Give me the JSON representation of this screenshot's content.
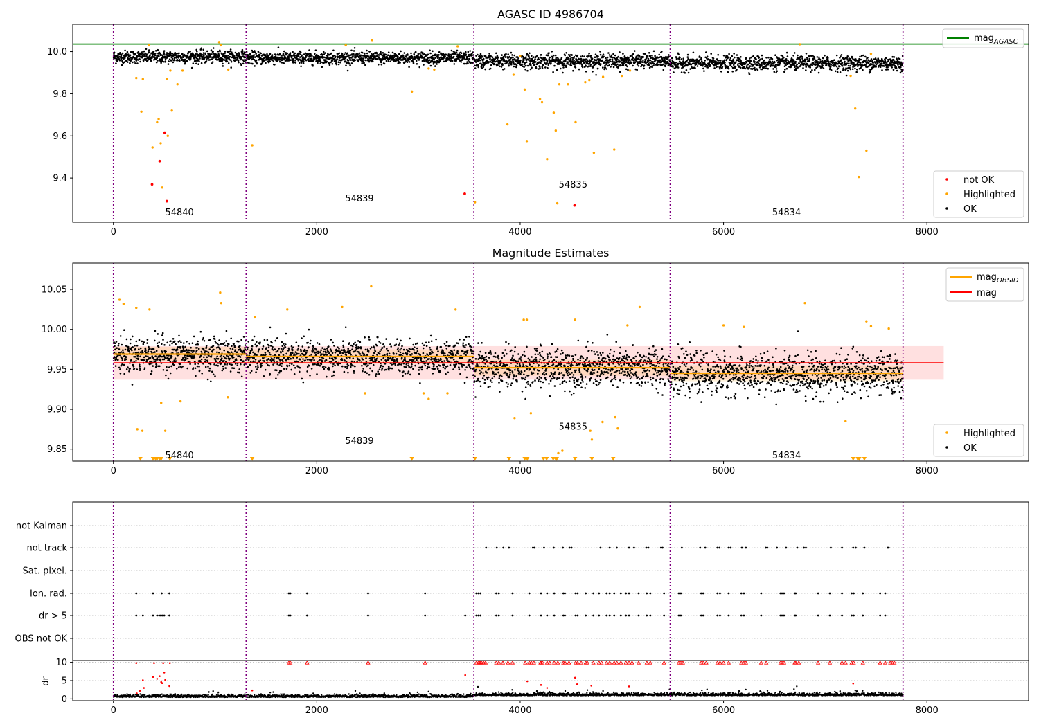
{
  "chart_data": [
    {
      "id": "top",
      "type": "scatter",
      "title": "AGASC ID 4986704",
      "xlim": [
        -400,
        9000
      ],
      "ylim": [
        9.19,
        10.13
      ],
      "xticks": [
        0,
        2000,
        4000,
        6000,
        8000
      ],
      "yticks": [
        9.4,
        9.6,
        9.8,
        10.0
      ],
      "ytick_labels": [
        "9.4",
        "9.6",
        "9.8",
        "10.0"
      ],
      "obs_boundaries": [
        0,
        1305,
        3545,
        5475,
        7765
      ],
      "obsid_labels": [
        {
          "text": "54840",
          "x": 650,
          "y": 9.24
        },
        {
          "text": "54839",
          "x": 2420,
          "y": 9.305
        },
        {
          "text": "54835",
          "x": 4520,
          "y": 9.37
        },
        {
          "text": "54834",
          "x": 6620,
          "y": 9.24
        }
      ],
      "hlines": [
        {
          "name": "mag_AGASC",
          "y": 10.036,
          "color": "#008000"
        }
      ],
      "ok_band": [
        {
          "x0": 0,
          "x1": 1305,
          "center": 9.975,
          "spread": 0.03
        },
        {
          "x0": 1305,
          "x1": 3545,
          "center": 9.97,
          "spread": 0.03
        },
        {
          "x0": 3545,
          "x1": 5475,
          "center": 9.955,
          "spread": 0.035
        },
        {
          "x0": 5475,
          "x1": 7765,
          "center": 9.945,
          "spread": 0.035
        }
      ],
      "series": [
        {
          "name": "not OK",
          "color": "#ff0000",
          "points": [
            [
              380,
              9.37
            ],
            [
              455,
              9.48
            ],
            [
              505,
              9.615
            ],
            [
              525,
              9.29
            ],
            [
              3455,
              9.325
            ],
            [
              4535,
              9.27
            ]
          ]
        },
        {
          "name": "Highlighted",
          "color": "#ffa500",
          "points": [
            [
              225,
              9.875
            ],
            [
              275,
              9.715
            ],
            [
              290,
              9.87
            ],
            [
              350,
              10.03
            ],
            [
              385,
              9.545
            ],
            [
              430,
              9.665
            ],
            [
              445,
              9.68
            ],
            [
              465,
              9.565
            ],
            [
              480,
              9.355
            ],
            [
              525,
              9.87
            ],
            [
              535,
              9.6
            ],
            [
              560,
              9.91
            ],
            [
              575,
              9.72
            ],
            [
              630,
              9.845
            ],
            [
              680,
              9.91
            ],
            [
              1040,
              10.045
            ],
            [
              1055,
              10.03
            ],
            [
              1130,
              9.915
            ],
            [
              1365,
              9.555
            ],
            [
              2285,
              10.03
            ],
            [
              2545,
              10.055
            ],
            [
              2935,
              9.81
            ],
            [
              3100,
              9.92
            ],
            [
              3155,
              9.915
            ],
            [
              3385,
              10.025
            ],
            [
              3555,
              9.285
            ],
            [
              3875,
              9.655
            ],
            [
              3935,
              9.89
            ],
            [
              4000,
              9.98
            ],
            [
              4045,
              9.82
            ],
            [
              4065,
              9.575
            ],
            [
              4195,
              9.775
            ],
            [
              4215,
              9.76
            ],
            [
              4265,
              9.49
            ],
            [
              4330,
              9.71
            ],
            [
              4350,
              9.625
            ],
            [
              4365,
              9.28
            ],
            [
              4385,
              9.845
            ],
            [
              4470,
              9.845
            ],
            [
              4545,
              9.665
            ],
            [
              4640,
              9.855
            ],
            [
              4680,
              9.865
            ],
            [
              4725,
              9.52
            ],
            [
              4815,
              9.88
            ],
            [
              4925,
              9.535
            ],
            [
              5000,
              9.885
            ],
            [
              5080,
              9.91
            ],
            [
              7250,
              9.885
            ],
            [
              7295,
              9.73
            ],
            [
              7330,
              9.405
            ],
            [
              7405,
              9.53
            ],
            [
              7450,
              9.99
            ],
            [
              6750,
              10.035
            ]
          ]
        },
        {
          "name": "OK",
          "color": "#000000",
          "points": []
        }
      ],
      "legend_main": "bottom-right",
      "legend_lines": "top-right",
      "xlabel": "",
      "ylabel": ""
    },
    {
      "id": "mid",
      "type": "scatter",
      "title": "Magnitude Estimates",
      "xlim": [
        -400,
        9000
      ],
      "ylim": [
        9.835,
        10.083
      ],
      "xticks": [
        0,
        2000,
        4000,
        6000,
        8000
      ],
      "yticks": [
        9.85,
        9.9,
        9.95,
        10.0,
        10.05
      ],
      "ytick_labels": [
        "9.85",
        "9.90",
        "9.95",
        "10.00",
        "10.05"
      ],
      "obs_boundaries": [
        0,
        1305,
        3545,
        5475,
        7765
      ],
      "obsid_labels": [
        {
          "text": "54840",
          "x": 650,
          "y": 9.843
        },
        {
          "text": "54839",
          "x": 2420,
          "y": 9.861
        },
        {
          "text": "54835",
          "x": 4520,
          "y": 9.879
        },
        {
          "text": "54834",
          "x": 6620,
          "y": 9.843
        }
      ],
      "mag": {
        "y": 9.958,
        "band": [
          9.937,
          9.979
        ],
        "x0": 0,
        "x1": 8165,
        "color": "#ff0000"
      },
      "mag_obsid": [
        {
          "x0": 0,
          "x1": 1305,
          "y": 9.969,
          "lo": 9.966,
          "hi": 9.972
        },
        {
          "x0": 1305,
          "x1": 3545,
          "y": 9.966,
          "lo": 9.963,
          "hi": 9.969
        },
        {
          "x0": 3545,
          "x1": 5475,
          "y": 9.952,
          "lo": 9.948,
          "hi": 9.956
        },
        {
          "x0": 5475,
          "x1": 7765,
          "y": 9.945,
          "lo": 9.941,
          "hi": 9.949
        }
      ],
      "ok_band": [
        {
          "x0": 0,
          "x1": 1305,
          "center": 9.968,
          "spread": 0.022
        },
        {
          "x0": 1305,
          "x1": 3545,
          "center": 9.965,
          "spread": 0.021
        },
        {
          "x0": 3545,
          "x1": 5475,
          "center": 9.952,
          "spread": 0.025
        },
        {
          "x0": 5475,
          "x1": 7765,
          "center": 9.944,
          "spread": 0.025
        }
      ],
      "series": [
        {
          "name": "Highlighted",
          "color": "#ffa500",
          "points": [
            [
              60,
              10.037
            ],
            [
              100,
              10.032
            ],
            [
              225,
              10.027
            ],
            [
              235,
              9.875
            ],
            [
              285,
              9.873
            ],
            [
              355,
              10.025
            ],
            [
              470,
              9.908
            ],
            [
              510,
              9.873
            ],
            [
              660,
              9.91
            ],
            [
              1050,
              10.046
            ],
            [
              1060,
              10.033
            ],
            [
              1125,
              9.915
            ],
            [
              1390,
              10.015
            ],
            [
              1710,
              10.025
            ],
            [
              2250,
              10.028
            ],
            [
              2475,
              9.92
            ],
            [
              2535,
              10.054
            ],
            [
              3050,
              9.92
            ],
            [
              3100,
              9.913
            ],
            [
              3285,
              9.92
            ],
            [
              3365,
              10.025
            ],
            [
              3945,
              9.889
            ],
            [
              4035,
              10.012
            ],
            [
              4065,
              10.012
            ],
            [
              4105,
              9.895
            ],
            [
              4375,
              9.845
            ],
            [
              4415,
              9.848
            ],
            [
              4540,
              10.012
            ],
            [
              4690,
              9.873
            ],
            [
              4705,
              9.862
            ],
            [
              4810,
              9.884
            ],
            [
              4935,
              9.89
            ],
            [
              4960,
              9.876
            ],
            [
              5055,
              10.005
            ],
            [
              5175,
              10.028
            ],
            [
              6000,
              10.005
            ],
            [
              6200,
              10.003
            ],
            [
              6800,
              10.033
            ],
            [
              7200,
              9.885
            ],
            [
              7405,
              10.01
            ],
            [
              7450,
              10.004
            ],
            [
              7625,
              10.001
            ]
          ]
        },
        {
          "name": "OK",
          "color": "#000000",
          "points": []
        }
      ],
      "clipped_low_x": [
        265,
        390,
        415,
        430,
        455,
        470,
        555,
        1365,
        2935,
        3555,
        3890,
        4045,
        4070,
        4230,
        4260,
        4325,
        4350,
        4360,
        4540,
        4705,
        4915,
        7275,
        7320,
        7335,
        7385
      ],
      "legend_main": "bottom-right",
      "legend_lines": "top-right",
      "xlabel": "",
      "ylabel": ""
    },
    {
      "id": "flags",
      "type": "scatter",
      "xlim": [
        -400,
        9000
      ],
      "categories": [
        "not Kalman",
        "not track",
        "Sat. pixel.",
        "Ion. rad.",
        "dr > 5",
        "OBS not OK"
      ],
      "obs_boundaries": [
        0,
        1305,
        3545,
        5475,
        7765
      ],
      "flags": {
        "not Kalman": [],
        "not track": [
          3665,
          3770,
          3835,
          3890,
          4125,
          4140,
          4235,
          4330,
          4420,
          4485,
          4505,
          4790,
          4880,
          4950,
          5070,
          5120,
          5240,
          5260,
          5385,
          5400,
          5590,
          5770,
          5820,
          5940,
          5960,
          6050,
          6070,
          6180,
          6220,
          6415,
          6430,
          6525,
          6615,
          6725,
          6790,
          6810,
          7055,
          7165,
          7275,
          7300,
          7385,
          7615,
          7625
        ],
        "Sat. pixel.": [],
        "Ion. rad.": [
          225,
          390,
          475,
          550,
          1725,
          1740,
          1905,
          2505,
          3065,
          3570,
          3590,
          3610,
          3765,
          3790,
          3925,
          4090,
          4205,
          4265,
          4335,
          4425,
          4440,
          4545,
          4565,
          4645,
          4720,
          4775,
          4850,
          4880,
          4925,
          4990,
          5040,
          5070,
          5165,
          5245,
          5280,
          5415,
          5560,
          5580,
          5780,
          5800,
          5940,
          5965,
          6050,
          6175,
          6200,
          6370,
          6560,
          6575,
          6595,
          6700,
          6710,
          6930,
          7045,
          7165,
          7260,
          7280,
          7370,
          7540,
          7590
        ],
        "dr > 5": [
          225,
          290,
          390,
          430,
          450,
          465,
          480,
          500,
          550,
          1725,
          1740,
          1905,
          2505,
          3065,
          3460,
          3570,
          3590,
          3610,
          3765,
          3790,
          3925,
          4090,
          4205,
          4265,
          4335,
          4425,
          4440,
          4545,
          4565,
          4645,
          4720,
          4775,
          4850,
          4880,
          4925,
          4990,
          5040,
          5070,
          5165,
          5245,
          5280,
          5415,
          5560,
          5580,
          5780,
          5800,
          5940,
          5965,
          6050,
          6175,
          6200,
          6370,
          6560,
          6575,
          6595,
          6700,
          6710,
          6930,
          7045,
          7165,
          7260,
          7280,
          7370,
          7540,
          7590
        ],
        "OBS not OK": []
      }
    },
    {
      "id": "dr",
      "type": "scatter",
      "xlim": [
        -400,
        9000
      ],
      "ylim": [
        -0.5,
        10.5
      ],
      "ylabel": "dr",
      "yticks": [
        0,
        5,
        10
      ],
      "ytick_labels": [
        "0",
        "5",
        "10"
      ],
      "obs_boundaries": [
        0,
        1305,
        3545,
        5475,
        7765
      ],
      "xticks": [
        0,
        2000,
        4000,
        6000,
        8000
      ],
      "series": [
        {
          "name": "above threshold",
          "color": "#ff0000",
          "points": [
            [
              225,
              9.8
            ],
            [
              230,
              1.5
            ],
            [
              260,
              2.2
            ],
            [
              290,
              5.1
            ],
            [
              300,
              3.0
            ],
            [
              390,
              6.0
            ],
            [
              400,
              9.8
            ],
            [
              430,
              5.5
            ],
            [
              455,
              6.2
            ],
            [
              470,
              4.6
            ],
            [
              480,
              4.3
            ],
            [
              490,
              9.8
            ],
            [
              500,
              7.2
            ],
            [
              510,
              5.2
            ],
            [
              550,
              3.5
            ],
            [
              555,
              9.8
            ],
            [
              1365,
              2.3
            ],
            [
              3460,
              6.5
            ],
            [
              4070,
              4.8
            ],
            [
              4205,
              3.8
            ],
            [
              4265,
              3.0
            ],
            [
              4540,
              5.8
            ],
            [
              4560,
              4.0
            ],
            [
              4700,
              3.6
            ],
            [
              5070,
              3.4
            ],
            [
              7275,
              4.2
            ]
          ]
        },
        {
          "name": "below threshold",
          "color": "#000000",
          "points": []
        }
      ],
      "dr_capped_x": [
        1725,
        1740,
        1905,
        2505,
        3065,
        3570,
        3590,
        3600,
        3610,
        3620,
        3640,
        3660,
        3765,
        3790,
        3830,
        3880,
        3925,
        4050,
        4090,
        4110,
        4135,
        4200,
        4205,
        4220,
        4265,
        4290,
        4335,
        4370,
        4425,
        4440,
        4480,
        4545,
        4565,
        4600,
        4645,
        4660,
        4720,
        4775,
        4800,
        4850,
        4880,
        4925,
        4950,
        4990,
        5040,
        5070,
        5100,
        5165,
        5245,
        5280,
        5415,
        5560,
        5580,
        5600,
        5780,
        5800,
        5830,
        5940,
        5965,
        6000,
        6050,
        6175,
        6200,
        6220,
        6370,
        6420,
        6560,
        6575,
        6595,
        6700,
        6710,
        6740,
        6930,
        7045,
        7165,
        7200,
        7260,
        7280,
        7370,
        7540,
        7590,
        7640,
        7660,
        7680
      ]
    }
  ],
  "legends": {
    "top_lines": [
      {
        "label_main": "mag",
        "label_sub": "AGASC",
        "color": "#008000",
        "kind": "line"
      }
    ],
    "top_points": [
      {
        "label": "not OK",
        "color": "#ff0000"
      },
      {
        "label": "Highlighted",
        "color": "#ffa500"
      },
      {
        "label": "OK",
        "color": "#000000"
      }
    ],
    "mid_lines": [
      {
        "label_main": "mag",
        "label_sub": "OBSID",
        "color": "#ffa500",
        "kind": "line"
      },
      {
        "label_main": "mag",
        "label_sub": "",
        "color": "#ff0000",
        "kind": "line"
      }
    ],
    "mid_points": [
      {
        "label": "Highlighted",
        "color": "#ffa500"
      },
      {
        "label": "OK",
        "color": "#000000"
      }
    ]
  }
}
